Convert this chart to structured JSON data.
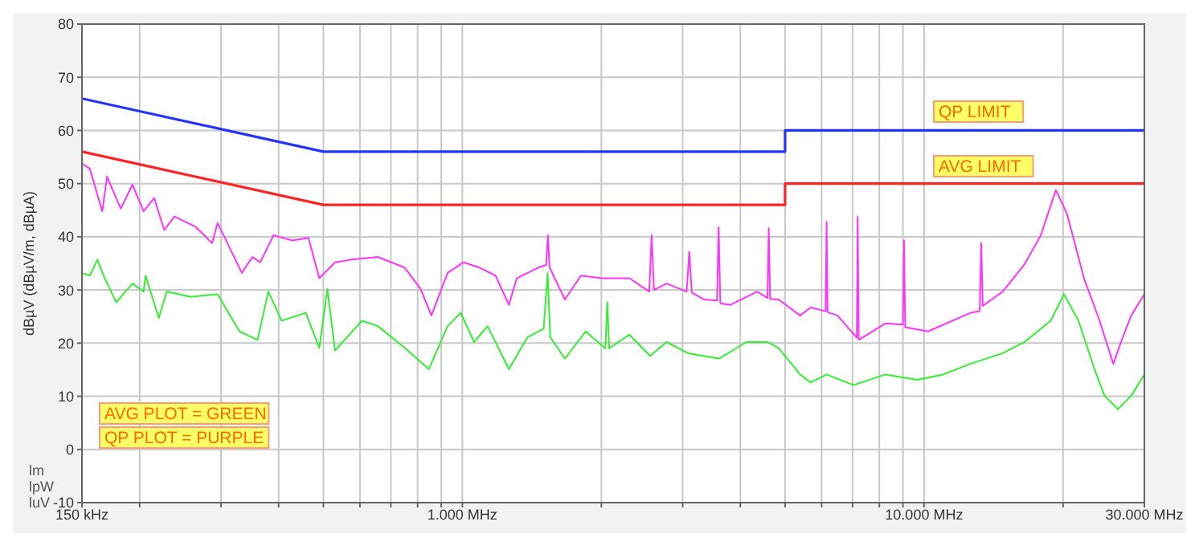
{
  "chart_data": {
    "type": "line",
    "ylabel": "dBµV (dBµV/m, dBµA)",
    "log": "x",
    "grid": true,
    "xlim": [
      150,
      30000
    ],
    "ylim": [
      -10,
      80
    ],
    "xticks": [
      {
        "value": 150,
        "label": "150 kHz"
      },
      {
        "value": 200,
        "label": null
      },
      {
        "value": 300,
        "label": null
      },
      {
        "value": 400,
        "label": null
      },
      {
        "value": 500,
        "label": null
      },
      {
        "value": 600,
        "label": null
      },
      {
        "value": 700,
        "label": null
      },
      {
        "value": 800,
        "label": null
      },
      {
        "value": 900,
        "label": null
      },
      {
        "value": 1000,
        "label": "1.000 MHz"
      },
      {
        "value": 2000,
        "label": null
      },
      {
        "value": 3000,
        "label": null
      },
      {
        "value": 4000,
        "label": null
      },
      {
        "value": 5000,
        "label": null
      },
      {
        "value": 6000,
        "label": null
      },
      {
        "value": 7000,
        "label": null
      },
      {
        "value": 8000,
        "label": null
      },
      {
        "value": 9000,
        "label": null
      },
      {
        "value": 10000,
        "label": "10.000 MHz"
      },
      {
        "value": 20000,
        "label": null
      },
      {
        "value": 30000,
        "label": "30.000 MHz"
      }
    ],
    "yticks": [
      -10,
      0,
      10,
      20,
      30,
      40,
      50,
      60,
      70,
      80
    ],
    "series": [
      {
        "color": "#2233ff",
        "x": [
          150,
          500,
          5000,
          5000,
          30000
        ],
        "values": [
          66,
          56,
          56,
          60,
          60
        ]
      },
      {
        "color": "#ff2222",
        "x": [
          150,
          500,
          5000,
          5000,
          30000
        ],
        "values": [
          56,
          46,
          46,
          50,
          50
        ]
      },
      {
        "color": "#ff33ff",
        "x": [
          150,
          156,
          166,
          170,
          182,
          193,
          204,
          215,
          226,
          238,
          265,
          287,
          295,
          333,
          351,
          365,
          390,
          428,
          464,
          490,
          530,
          575,
          656,
          750,
          812,
          857,
          929,
          1005,
          1089,
          1180,
          1261,
          1312,
          1459,
          1519,
          1532,
          1545,
          1668,
          1806,
          2007,
          2300,
          2540,
          2570,
          2600,
          2770,
          3060,
          3100,
          3140,
          3340,
          3560,
          3590,
          3620,
          3810,
          4350,
          4580,
          4610,
          4640,
          4840,
          5390,
          5680,
          6120,
          6150,
          6180,
          6490,
          7150,
          7180,
          7220,
          8240,
          9000,
          9050,
          9100,
          10200,
          12600,
          13200,
          13300,
          13400,
          14800,
          16500,
          17900,
          19300,
          20400,
          22200,
          24000,
          25700,
          26700,
          28100,
          30000
        ],
        "values": [
          53.8,
          52.8,
          44.8,
          51.3,
          45.3,
          49.8,
          44.8,
          47.3,
          41.3,
          43.8,
          41.8,
          38.8,
          42.6,
          33.2,
          36.2,
          35.2,
          40.3,
          39.3,
          39.8,
          32.2,
          35.2,
          35.7,
          36.2,
          34.2,
          30.2,
          25.2,
          33.2,
          35.2,
          34.2,
          32.7,
          27.2,
          32.2,
          34.2,
          34.7,
          40.3,
          34.2,
          28.2,
          32.7,
          32.2,
          32.2,
          29.7,
          40.3,
          30.0,
          31.2,
          29.7,
          37.2,
          29.5,
          28.2,
          28.0,
          41.8,
          27.5,
          27.2,
          29.7,
          28.5,
          41.6,
          28.3,
          28.2,
          25.2,
          26.7,
          26.0,
          42.8,
          25.8,
          25.2,
          21.0,
          43.8,
          20.6,
          23.7,
          23.5,
          39.3,
          23.0,
          22.2,
          25.7,
          26.0,
          38.8,
          27.0,
          29.7,
          34.8,
          40.3,
          48.8,
          44.3,
          32.2,
          24.2,
          16.1,
          20.2,
          25.2,
          29.2
        ]
      },
      {
        "color": "#33ee33",
        "x": [
          150,
          156,
          162,
          168,
          178,
          193,
          204,
          206,
          220,
          229,
          258,
          295,
          329,
          360,
          380,
          406,
          458,
          490,
          510,
          530,
          606,
          656,
          750,
          846,
          929,
          992,
          1060,
          1134,
          1261,
          1384,
          1500,
          1530,
          1550,
          1668,
          1850,
          2040,
          2060,
          2080,
          2300,
          2550,
          2770,
          3080,
          3600,
          4120,
          4590,
          4840,
          5390,
          5680,
          6150,
          7030,
          8240,
          9670,
          11000,
          12600,
          14800,
          16500,
          18800,
          20100,
          21600,
          23400,
          24600,
          26300,
          28100,
          30000
        ],
        "values": [
          33.2,
          32.7,
          35.7,
          32.2,
          27.7,
          31.2,
          29.7,
          32.7,
          24.7,
          29.7,
          28.7,
          29.2,
          22.2,
          20.6,
          29.7,
          24.2,
          25.7,
          19.1,
          30.2,
          18.6,
          24.2,
          23.2,
          19.1,
          15.1,
          23.2,
          25.7,
          20.2,
          23.2,
          15.1,
          21.1,
          22.7,
          33.2,
          21.1,
          17.1,
          22.2,
          19.0,
          27.7,
          19.0,
          21.6,
          17.6,
          20.2,
          18.1,
          17.1,
          20.2,
          20.2,
          19.1,
          14.1,
          12.6,
          14.1,
          12.1,
          14.1,
          13.1,
          14.1,
          16.1,
          18.1,
          20.2,
          24.2,
          29.2,
          24.2,
          15.1,
          10.1,
          7.6,
          10.1,
          14.1
        ]
      }
    ],
    "annotations": [
      "QP LIMIT",
      "AVG LIMIT",
      "AVG PLOT = GREEN",
      "QP PLOT = PURPLE",
      "lm",
      "lpW",
      "luV"
    ]
  }
}
